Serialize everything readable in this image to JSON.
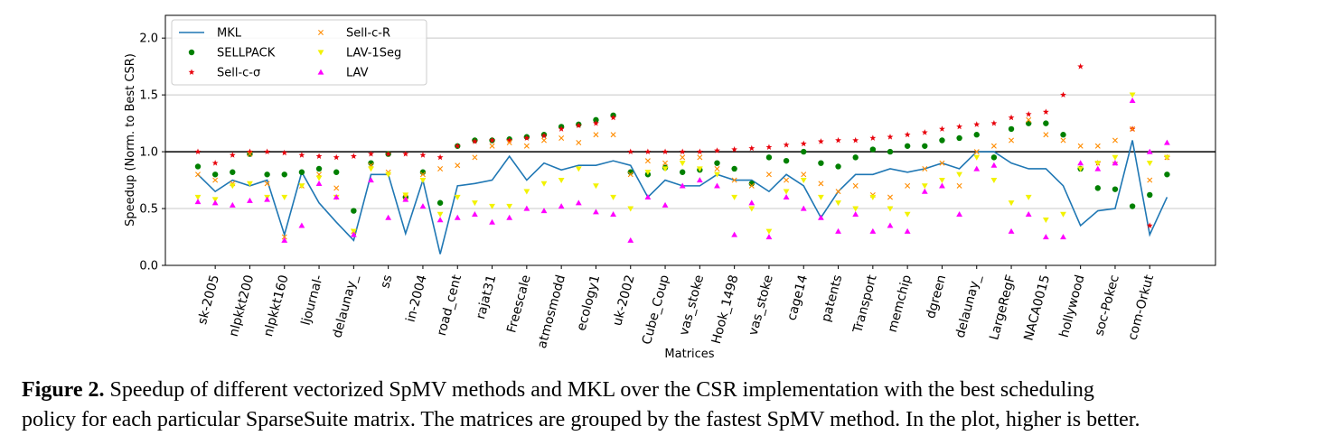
{
  "chart_data": {
    "type": "line_scatter",
    "ylabel": "Speedup (Norm. to Best CSR)",
    "xlabel": "Matrices",
    "ylim": [
      0,
      2.2
    ],
    "yticks": [
      {
        "value": 0,
        "label": "0.0"
      },
      0.5,
      {
        "value": 1,
        "label": "1.0"
      },
      1.5,
      {
        "value": 2,
        "label": "2.0"
      }
    ],
    "grid": true,
    "hline": 1,
    "legend": "upper left",
    "categories": [
      null,
      "sk-2005",
      null,
      "nlpkkt200",
      null,
      "nlpkkt160",
      null,
      "ljournal-",
      null,
      "delaunay_",
      null,
      "ss",
      null,
      "in-2004",
      null,
      "road_cent",
      null,
      "rajat31",
      null,
      "Freescale",
      null,
      "atmosmodd",
      null,
      "ecology1",
      null,
      "uk-2002",
      null,
      "Cube_Coup",
      null,
      "vas_stoke",
      null,
      "Hook_1498",
      null,
      "vas_stoke",
      null,
      "cage14",
      null,
      "patents",
      null,
      "Transport",
      null,
      "memchip",
      null,
      "dgreen",
      null,
      "delaunay_",
      null,
      "LargeRegF",
      null,
      "NACA0015",
      null,
      "hollywood",
      null,
      "soc-Pokec",
      null,
      "com-Orkut",
      null
    ],
    "series": [
      {
        "name": "MKL",
        "color": "#1f77b4",
        "marker": "line",
        "values": [
          0.8,
          0.65,
          0.75,
          0.7,
          0.75,
          0.27,
          0.82,
          0.55,
          0.38,
          0.22,
          0.8,
          0.8,
          0.28,
          0.75,
          0.1,
          0.7,
          0.72,
          0.75,
          0.96,
          0.75,
          0.9,
          0.84,
          0.88,
          0.88,
          0.92,
          0.88,
          0.6,
          0.75,
          0.7,
          0.7,
          0.8,
          0.75,
          0.75,
          0.65,
          0.8,
          0.7,
          0.42,
          0.65,
          0.8,
          0.8,
          0.85,
          0.82,
          0.85,
          0.9,
          0.85,
          1.0,
          1.0,
          0.9,
          0.85,
          0.85,
          0.7,
          0.35,
          0.48,
          0.5,
          1.1,
          0.27,
          0.6
        ]
      },
      {
        "name": "SELLPACK",
        "color": "#008000",
        "marker": "o",
        "values": [
          0.87,
          0.8,
          0.82,
          0.98,
          0.8,
          0.8,
          0.82,
          0.85,
          0.82,
          0.48,
          0.9,
          0.98,
          0.6,
          0.82,
          0.55,
          1.05,
          1.1,
          1.1,
          1.11,
          1.13,
          1.15,
          1.22,
          1.24,
          1.28,
          1.32,
          0.82,
          0.8,
          0.86,
          0.82,
          0.84,
          0.9,
          0.85,
          0.72,
          0.95,
          0.92,
          1.0,
          0.9,
          0.87,
          0.95,
          1.02,
          1.0,
          1.05,
          1.05,
          1.1,
          1.12,
          1.15,
          0.95,
          1.2,
          1.25,
          1.25,
          1.15,
          0.85,
          0.68,
          0.67,
          0.52,
          0.62,
          0.8
        ]
      },
      {
        "name": "Sell-c-σ",
        "color": "#e8000b",
        "marker": "*",
        "values": [
          1.0,
          0.9,
          0.97,
          1.0,
          1.0,
          0.99,
          0.97,
          0.96,
          0.95,
          0.96,
          0.98,
          0.98,
          0.98,
          0.97,
          0.95,
          1.05,
          1.09,
          1.1,
          1.1,
          1.12,
          1.14,
          1.2,
          1.23,
          1.25,
          1.3,
          1.0,
          1.0,
          1.0,
          1.0,
          1.0,
          1.01,
          1.02,
          1.03,
          1.04,
          1.06,
          1.07,
          1.09,
          1.1,
          1.1,
          1.12,
          1.13,
          1.15,
          1.17,
          1.2,
          1.22,
          1.24,
          1.25,
          1.3,
          1.33,
          1.35,
          1.5,
          1.75,
          0.9,
          0.9,
          1.2,
          0.35,
          0.95
        ]
      },
      {
        "name": "Sell-c-R",
        "color": "#ff8c00",
        "marker": "x",
        "values": [
          0.8,
          0.75,
          0.72,
          0.98,
          0.72,
          0.25,
          0.7,
          0.8,
          0.68,
          0.3,
          0.88,
          0.82,
          0.6,
          0.8,
          0.85,
          0.88,
          0.95,
          1.05,
          1.08,
          1.05,
          1.1,
          1.12,
          1.08,
          1.15,
          1.15,
          0.8,
          0.92,
          0.9,
          0.95,
          0.95,
          0.85,
          0.75,
          0.7,
          0.8,
          0.75,
          0.8,
          0.72,
          0.65,
          0.7,
          0.62,
          0.6,
          0.7,
          0.85,
          0.9,
          0.7,
          1.0,
          1.05,
          1.1,
          1.28,
          1.15,
          1.1,
          1.05,
          1.05,
          1.1,
          1.2,
          0.75,
          0.95
        ]
      },
      {
        "name": "LAV-1Seg",
        "color": "#f2f200",
        "marker": "v",
        "values": [
          0.6,
          0.58,
          0.7,
          0.72,
          0.6,
          0.6,
          0.7,
          0.77,
          0.6,
          0.3,
          0.85,
          0.8,
          0.62,
          0.75,
          0.45,
          0.6,
          0.55,
          0.52,
          0.52,
          0.65,
          0.72,
          0.75,
          0.85,
          0.7,
          0.6,
          0.5,
          0.82,
          0.85,
          0.9,
          0.85,
          0.8,
          0.6,
          0.5,
          0.3,
          0.65,
          0.75,
          0.6,
          0.55,
          0.5,
          0.6,
          0.5,
          0.45,
          0.7,
          0.75,
          0.8,
          0.95,
          0.75,
          0.55,
          0.6,
          0.4,
          0.45,
          0.85,
          0.9,
          0.95,
          1.5,
          0.9,
          0.95
        ]
      },
      {
        "name": "LAV",
        "color": "#ff00ff",
        "marker": "^",
        "values": [
          0.56,
          0.55,
          0.53,
          0.57,
          0.58,
          0.22,
          0.35,
          0.72,
          0.6,
          0.27,
          0.75,
          0.42,
          0.58,
          0.52,
          0.4,
          0.42,
          0.45,
          0.38,
          0.42,
          0.5,
          0.48,
          0.52,
          0.55,
          0.47,
          0.45,
          0.22,
          0.6,
          0.53,
          0.7,
          0.75,
          0.7,
          0.27,
          0.55,
          0.25,
          0.6,
          0.5,
          0.42,
          0.3,
          0.45,
          0.3,
          0.35,
          0.3,
          0.65,
          0.7,
          0.45,
          0.85,
          0.88,
          0.3,
          0.45,
          0.25,
          0.25,
          0.9,
          0.85,
          0.9,
          1.45,
          1.0,
          1.08
        ]
      }
    ]
  },
  "caption": {
    "label": "Figure 2.",
    "lines": [
      "Speedup of different vectorized SpMV methods and MKL over the CSR implementation with the best scheduling",
      "policy for each particular SparseSuite matrix. The matrices are grouped by the fastest SpMV method. In the plot, higher is better."
    ]
  }
}
